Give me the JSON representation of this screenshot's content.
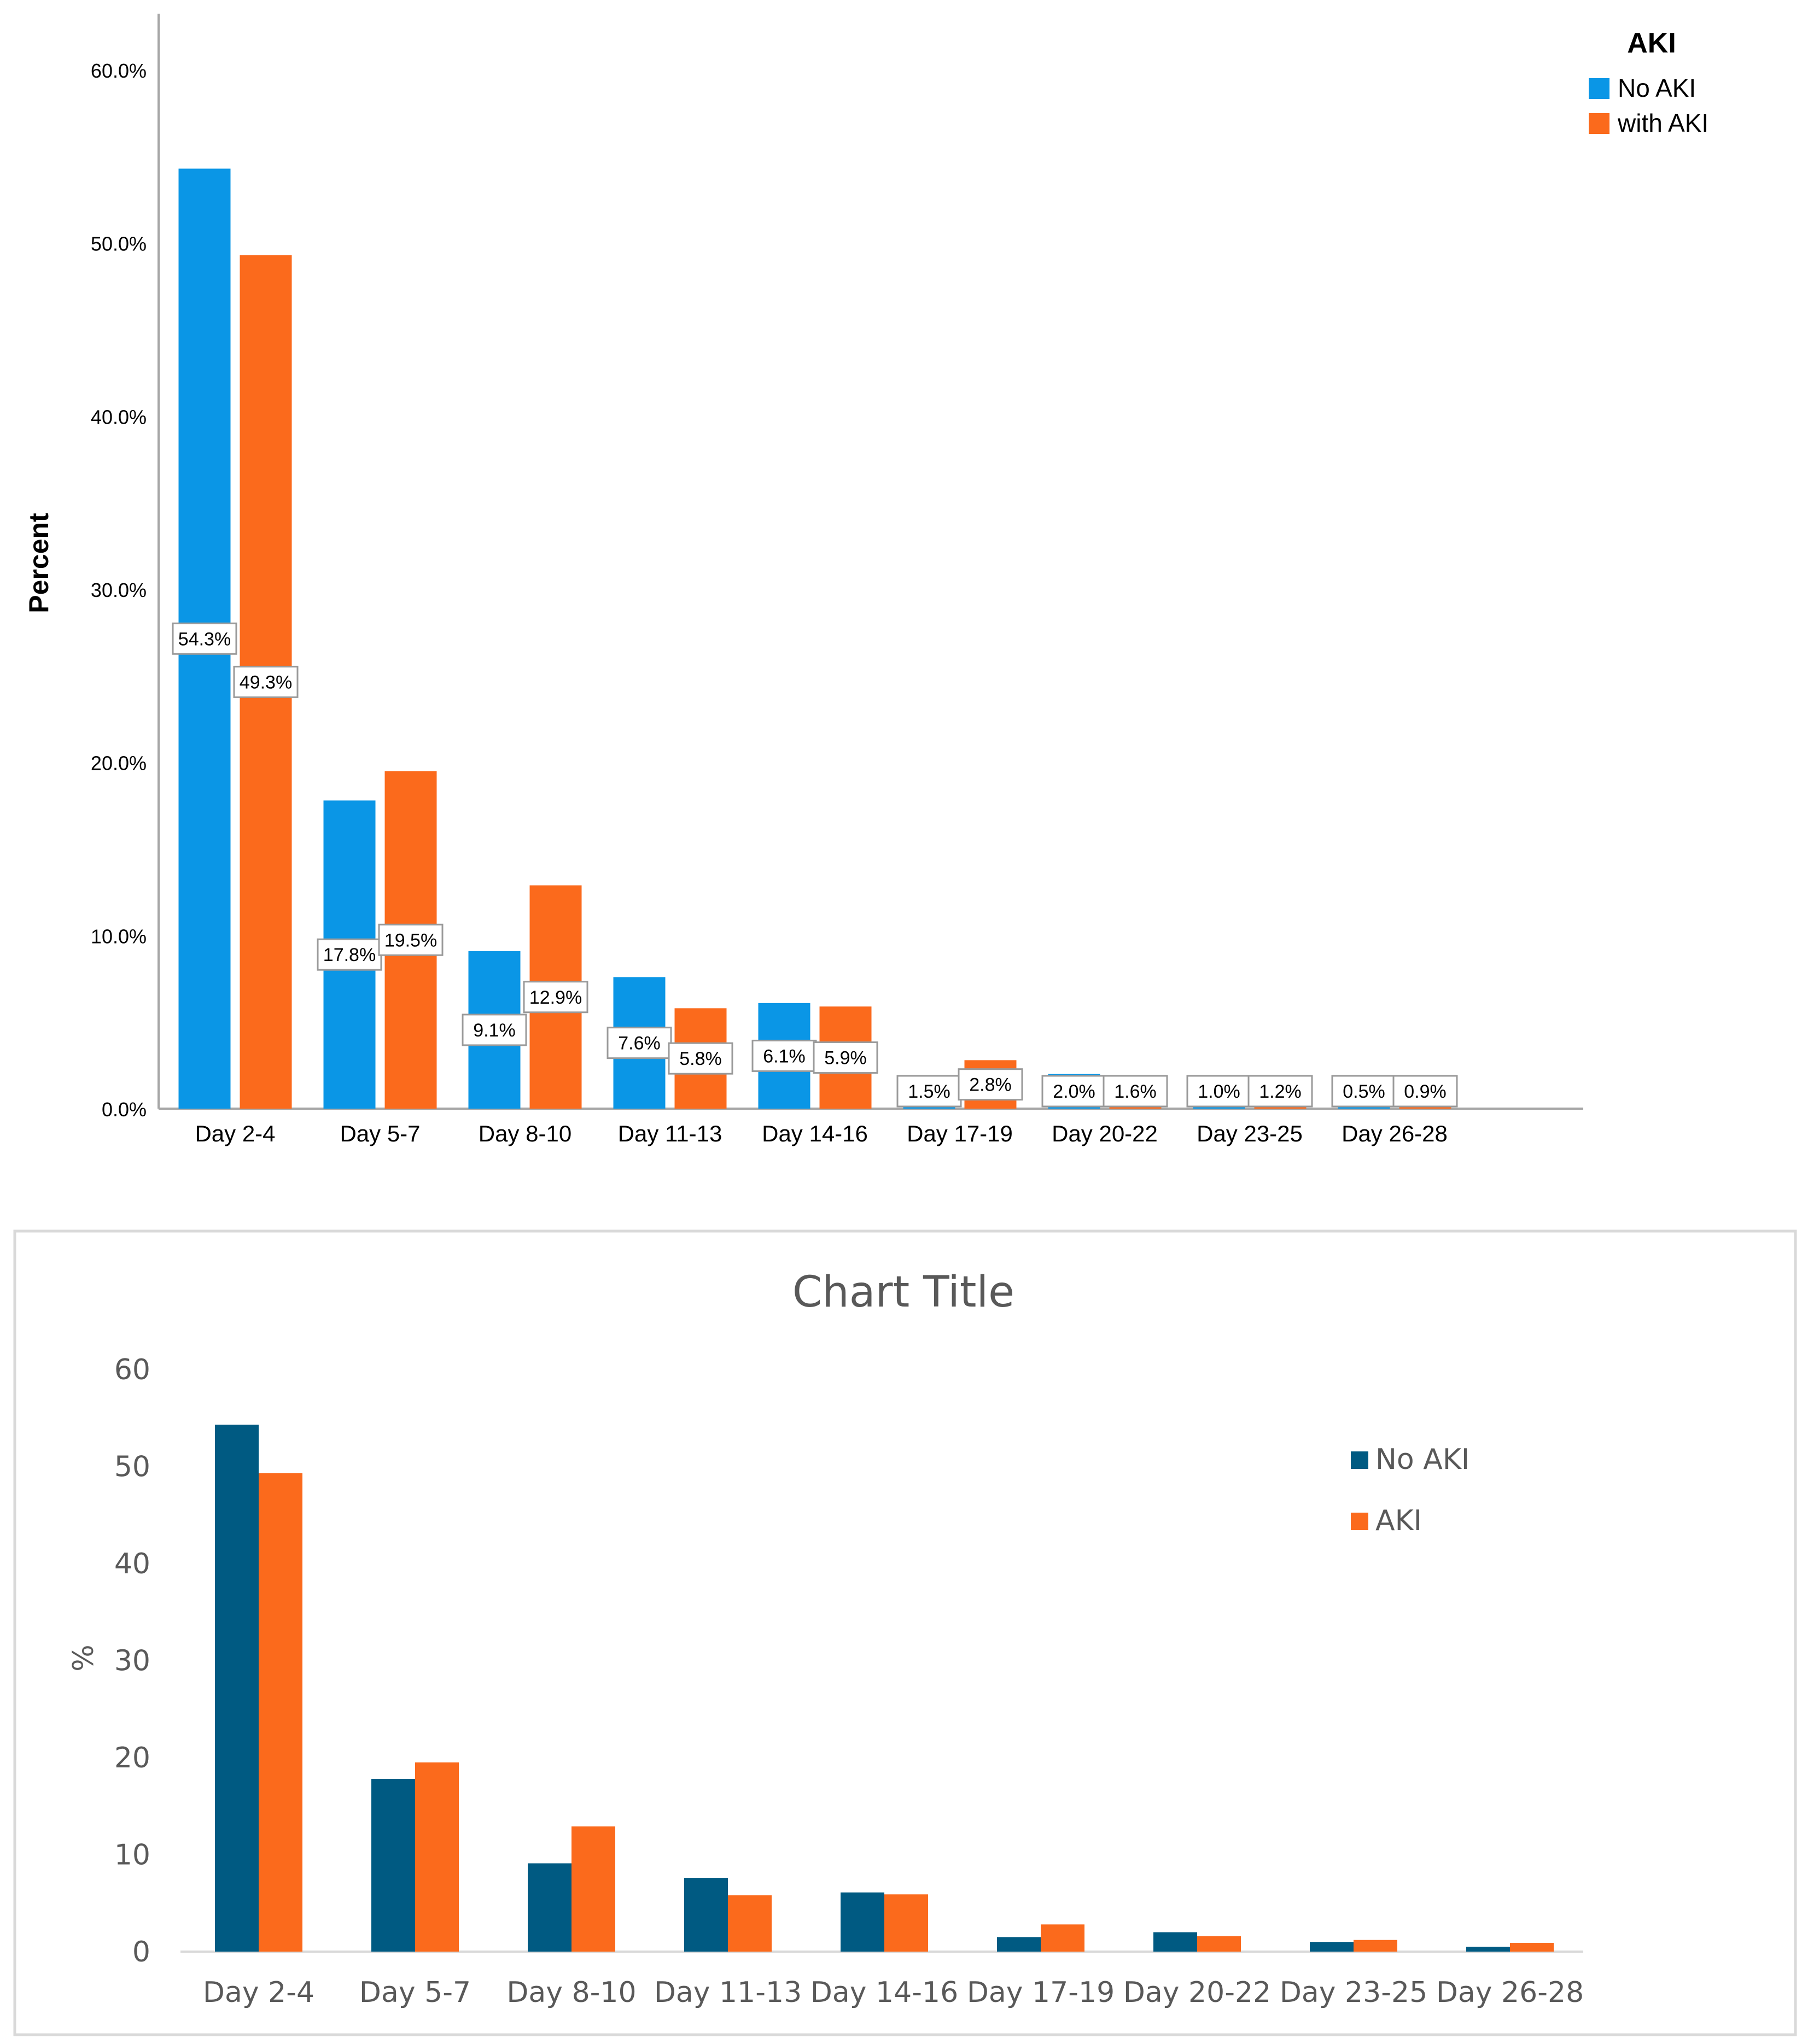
{
  "chart_data": [
    {
      "type": "bar",
      "title": "",
      "xlabel": "",
      "ylabel": "Percent",
      "ylim": [
        0,
        60
      ],
      "yticks": [
        "0.0%",
        "10.0%",
        "20.0%",
        "30.0%",
        "40.0%",
        "50.0%",
        "60.0%"
      ],
      "grid": false,
      "legend": {
        "title": "AKI",
        "position": "top-right"
      },
      "categories": [
        "Day 2-4",
        "Day 5-7",
        "Day 8-10",
        "Day 11-13",
        "Day 14-16",
        "Day 17-19",
        "Day 20-22",
        "Day 23-25",
        "Day 26-28"
      ],
      "series": [
        {
          "name": "No AKI",
          "color": "#0a96e6",
          "values": [
            54.3,
            17.8,
            9.1,
            7.6,
            6.1,
            1.5,
            2.0,
            1.0,
            0.5
          ],
          "labels": [
            "54.3%",
            "17.8%",
            "9.1%",
            "7.6%",
            "6.1%",
            "1.5%",
            "2.0%",
            "1.0%",
            "0.5%"
          ]
        },
        {
          "name": "with AKI",
          "color": "#fb6a1c",
          "values": [
            49.3,
            19.5,
            12.9,
            5.8,
            5.9,
            2.8,
            1.6,
            1.2,
            0.9
          ],
          "labels": [
            "49.3%",
            "19.5%",
            "12.9%",
            "5.8%",
            "5.9%",
            "2.8%",
            "1.6%",
            "1.2%",
            "0.9%"
          ]
        }
      ]
    },
    {
      "type": "bar",
      "title": "Chart Title",
      "xlabel": "",
      "ylabel": "%",
      "ylim": [
        0,
        60
      ],
      "yticks": [
        "0",
        "10",
        "20",
        "30",
        "40",
        "50",
        "60"
      ],
      "grid": false,
      "legend": {
        "title": "",
        "position": "right"
      },
      "categories": [
        "Day 2-4",
        "Day 5-7",
        "Day 8-10",
        "Day 11-13",
        "Day 14-16",
        "Day 17-19",
        "Day 20-22",
        "Day 23-25",
        "Day 26-28"
      ],
      "series": [
        {
          "name": "No AKI",
          "color": "#005a82",
          "values": [
            54.3,
            17.8,
            9.1,
            7.6,
            6.1,
            1.5,
            2.0,
            1.0,
            0.5
          ]
        },
        {
          "name": "AKI",
          "color": "#fb6a1c",
          "values": [
            49.3,
            19.5,
            12.9,
            5.8,
            5.9,
            2.8,
            1.6,
            1.2,
            0.9
          ]
        }
      ]
    }
  ]
}
